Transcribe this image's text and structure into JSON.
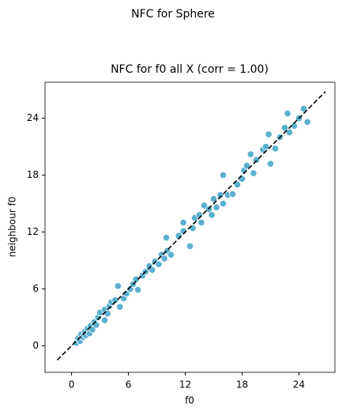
{
  "chart_data": {
    "type": "scatter",
    "suptitle": "NFC for Sphere",
    "title": "NFC for f0 all X (corr = 1.00)",
    "x_label": "f0",
    "y_label": "neighbour f0",
    "xlim": [
      -2.8,
      27.8
    ],
    "ylim": [
      -2.8,
      27.8
    ],
    "xticks": [
      0,
      6,
      12,
      18,
      24
    ],
    "yticks": [
      0,
      6,
      12,
      18,
      24
    ],
    "color": "#5ab0cf",
    "x": [
      0.5,
      0.7,
      0.9,
      1.0,
      1.2,
      1.4,
      1.5,
      1.7,
      1.9,
      2.0,
      2.2,
      2.4,
      2.6,
      2.8,
      3.5,
      3.0,
      3.5,
      3.8,
      4.0,
      4.2,
      4.6,
      4.9,
      5.1,
      5.5,
      5.8,
      6.2,
      6.5,
      6.8,
      7.0,
      7.5,
      7.8,
      8.2,
      8.5,
      8.8,
      9.2,
      9.5,
      9.8,
      10.1,
      10.0,
      10.5,
      11.3,
      11.8,
      11.8,
      12.5,
      12.8,
      13.0,
      13.5,
      13.7,
      14.0,
      14.5,
      14.8,
      15.0,
      15.3,
      15.7,
      16.0,
      16.0,
      16.5,
      17.0,
      17.5,
      18.0,
      18.2,
      18.5,
      18.9,
      19.2,
      19.5,
      20.2,
      20.5,
      20.8,
      21.0,
      21.5,
      22.0,
      22.5,
      22.8,
      23.0,
      23.5,
      24.0,
      24.5,
      24.9
    ],
    "values": [
      0.3,
      0.8,
      0.5,
      1.2,
      0.9,
      1.5,
      1.1,
      1.8,
      1.3,
      2.1,
      1.7,
      2.5,
      2.2,
      3.0,
      2.7,
      3.5,
      3.8,
      3.4,
      4.2,
      4.6,
      4.8,
      6.3,
      4.1,
      5.0,
      5.5,
      6.0,
      6.5,
      7.0,
      5.9,
      7.4,
      7.8,
      8.4,
      8.0,
      8.9,
      8.6,
      9.6,
      9.2,
      10.0,
      11.4,
      9.6,
      11.6,
      12.1,
      13.0,
      10.5,
      12.4,
      13.5,
      13.8,
      13.0,
      14.8,
      14.4,
      13.8,
      15.5,
      14.6,
      15.9,
      15.0,
      18.0,
      15.9,
      16.0,
      17.0,
      17.6,
      18.5,
      19.0,
      20.2,
      18.2,
      19.6,
      20.7,
      21.0,
      22.3,
      19.2,
      20.8,
      22.0,
      23.0,
      24.5,
      22.5,
      23.2,
      24.0,
      25.0,
      23.6
    ],
    "reference_line": {
      "x": [
        -1.5,
        26.8
      ],
      "y": [
        -1.5,
        26.8
      ]
    }
  }
}
